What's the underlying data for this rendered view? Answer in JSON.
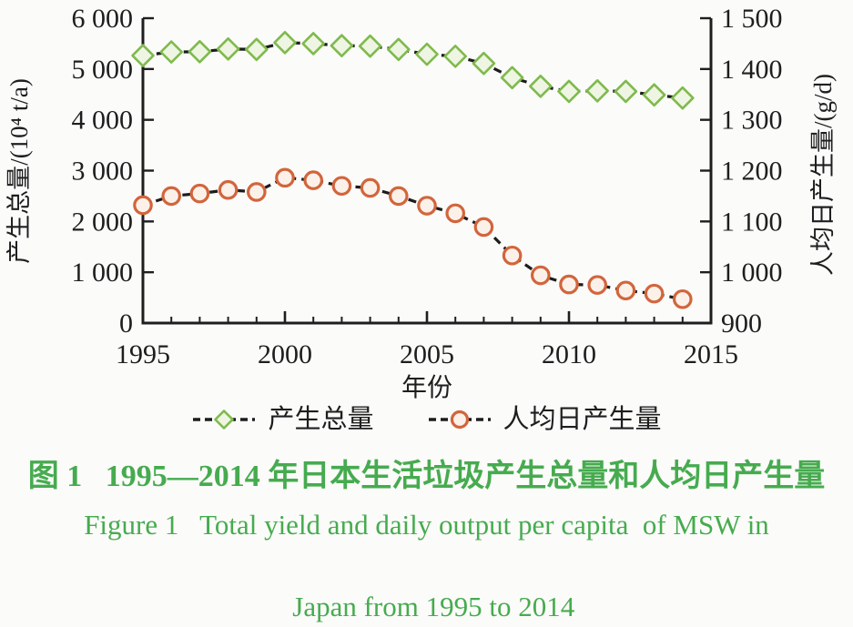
{
  "figure": {
    "caption_zh": "图 1   1995—2014 年日本生活垃圾产生总量和人均日产生量",
    "caption_en_line1": "Figure 1   Total yield and daily output per capita  of MSW in",
    "caption_en_line2": "Japan from 1995 to 2014",
    "caption_color": "#46ab4f"
  },
  "chart_data": {
    "type": "line",
    "x": [
      1995,
      1996,
      1997,
      1998,
      1999,
      2000,
      2001,
      2002,
      2003,
      2004,
      2005,
      2006,
      2007,
      2008,
      2009,
      2010,
      2011,
      2012,
      2013,
      2014
    ],
    "xlabel": "年份",
    "ylabel_left": "产生总量/(10⁴ t/a)",
    "ylabel_right": "人均日产生量/(g/d)",
    "xlim": [
      1995,
      2015
    ],
    "ylim_left": [
      0,
      6000
    ],
    "ylim_right": [
      900,
      1500
    ],
    "grid": false,
    "legend_position": "bottom",
    "xticks": {
      "values": [
        1995,
        2000,
        2005,
        2010,
        2015
      ],
      "labels": [
        "1995",
        "2000",
        "2005",
        "2010",
        "2015"
      ],
      "minor_step": 1
    },
    "yticks_left": {
      "values": [
        0,
        1000,
        2000,
        3000,
        4000,
        5000,
        6000
      ],
      "labels": [
        "0",
        "1 000",
        "2 000",
        "3 000",
        "4 000",
        "5 000",
        "6 000"
      ]
    },
    "yticks_right": {
      "values": [
        900,
        1000,
        1100,
        1200,
        1300,
        1400,
        1500
      ],
      "labels": [
        "900",
        "1 000",
        "1 100",
        "1 200",
        "1 300",
        "1 400",
        "1 500"
      ]
    },
    "axis_color": "#1e1e1e",
    "line_color": "#1c1c1c",
    "series": [
      {
        "id": "total-yield",
        "name": "产生总量",
        "axis": "left",
        "marker": "diamond",
        "marker_stroke": "#7fba4c",
        "marker_fill": "#eef5e3",
        "line_style": "dashed",
        "values": [
          5265,
          5335,
          5340,
          5395,
          5385,
          5520,
          5500,
          5460,
          5450,
          5385,
          5290,
          5250,
          5110,
          4830,
          4660,
          4560,
          4570,
          4560,
          4490,
          4430
        ]
      },
      {
        "id": "per-capita",
        "name": "人均日产生量",
        "axis": "right",
        "marker": "circle",
        "marker_stroke": "#d2653c",
        "marker_fill": "#fbf1e9",
        "line_style": "dashed",
        "values": [
          1132,
          1150,
          1155,
          1162,
          1158,
          1186,
          1181,
          1170,
          1166,
          1150,
          1131,
          1116,
          1089,
          1033,
          994,
          976,
          975,
          964,
          958,
          947
        ]
      }
    ]
  }
}
